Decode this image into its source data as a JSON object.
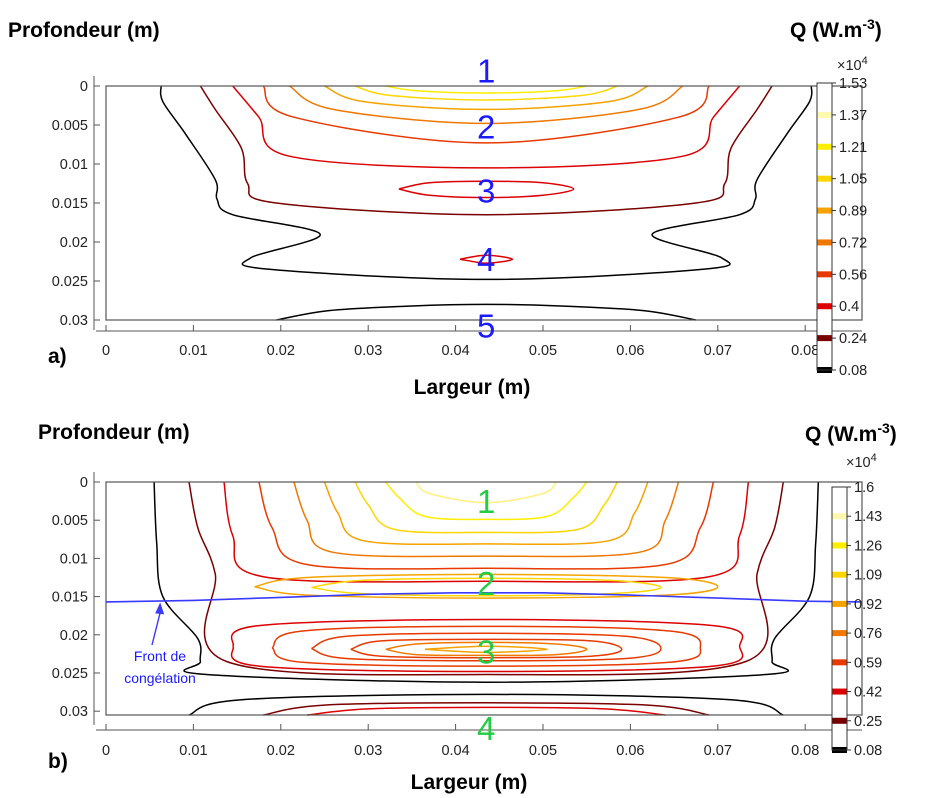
{
  "chart_data": [
    {
      "type": "contour",
      "panel_label": "a)",
      "title": "",
      "xlabel": "Largeur (m)",
      "ylabel": "Profondeur (m)",
      "xlim": [
        0,
        0.0865
      ],
      "ylim": [
        0.03,
        0
      ],
      "xticks": [
        "0",
        "0.01",
        "0.02",
        "0.03",
        "0.04",
        "0.05",
        "0.06",
        "0.07",
        "0.08"
      ],
      "yticks": [
        "0",
        "0.005",
        "0.01",
        "0.015",
        "0.02",
        "0.025",
        "0.03"
      ],
      "colorbar": {
        "title": "Q (W.m",
        "title_exp": "-3",
        "title_end": ")",
        "multiplier": "×10",
        "multiplier_exp": "4",
        "ticks": [
          "1.53",
          "1.37",
          "1.21",
          "1.05",
          "0.89",
          "0.72",
          "0.56",
          "0.4",
          "0.24",
          "0.08"
        ],
        "colors": [
          "#ffffff",
          "#fff9b0",
          "#ffee00",
          "#ffd700",
          "#f5a300",
          "#f07800",
          "#e83a00",
          "#dd0000",
          "#7a0000",
          "#000000"
        ]
      },
      "zones": [
        {
          "label": "1",
          "x": 0.0435,
          "y": -0.002,
          "color": "#1a1aff"
        },
        {
          "label": "2",
          "x": 0.0435,
          "y": 0.0052,
          "color": "#1a1aff"
        },
        {
          "label": "3",
          "x": 0.0435,
          "y": 0.0134,
          "color": "#1a1aff"
        },
        {
          "label": "4",
          "x": 0.0435,
          "y": 0.0222,
          "color": "#1a1aff"
        },
        {
          "label": "5",
          "x": 0.0435,
          "y": 0.0307,
          "color": "#1a1aff"
        }
      ],
      "contours": [
        {
          "level": 0.08,
          "color": "#000000",
          "x": [
            0.0063,
            0.0065,
            0.009,
            0.0125,
            0.0127,
            0.0145,
            0.0245,
            0.0166,
            0.0187,
            0.0435,
            0.0683,
            0.0704,
            0.0625,
            0.0725,
            0.0743,
            0.0745,
            0.078,
            0.0805,
            0.0807
          ],
          "y": [
            0,
            0.002,
            0.006,
            0.012,
            0.0145,
            0.0165,
            0.019,
            0.022,
            0.0235,
            0.0248,
            0.0235,
            0.022,
            0.019,
            0.0165,
            0.0145,
            0.012,
            0.006,
            0.002,
            0
          ]
        },
        {
          "level": 0.08,
          "color": "#000000",
          "x": [
            0.0195,
            0.0255,
            0.035,
            0.0435,
            0.052,
            0.0615,
            0.0675
          ],
          "y": [
            0.03,
            0.0288,
            0.0282,
            0.028,
            0.0282,
            0.0288,
            0.03
          ]
        },
        {
          "level": 0.24,
          "color": "#7a0000",
          "x": [
            0.0108,
            0.0125,
            0.0155,
            0.0162,
            0.0195,
            0.0435,
            0.0675,
            0.0708,
            0.0715,
            0.0745,
            0.0762
          ],
          "y": [
            0,
            0.003,
            0.008,
            0.0125,
            0.015,
            0.0165,
            0.015,
            0.0125,
            0.008,
            0.003,
            0
          ]
        },
        {
          "level": 0.4,
          "color": "#dd0000",
          "x": [
            0.0145,
            0.0175,
            0.021,
            0.0435,
            0.066,
            0.0695,
            0.0725
          ],
          "y": [
            0,
            0.004,
            0.009,
            0.0105,
            0.009,
            0.004,
            0
          ]
        },
        {
          "level": 0.56,
          "color": "#e83a00",
          "x": [
            0.018,
            0.0215,
            0.0435,
            0.0655,
            0.069
          ],
          "y": [
            0,
            0.004,
            0.0073,
            0.004,
            0
          ]
        },
        {
          "level": 0.72,
          "color": "#f07800",
          "x": [
            0.021,
            0.026,
            0.0435,
            0.061,
            0.066
          ],
          "y": [
            0,
            0.003,
            0.0048,
            0.003,
            0
          ]
        },
        {
          "level": 0.89,
          "color": "#f5a300",
          "x": [
            0.025,
            0.0295,
            0.0435,
            0.0575,
            0.062
          ],
          "y": [
            0,
            0.002,
            0.003,
            0.002,
            0
          ]
        },
        {
          "level": 1.05,
          "color": "#ffd700",
          "x": [
            0.0285,
            0.0325,
            0.0435,
            0.0545,
            0.0585
          ],
          "y": [
            0,
            0.0012,
            0.0018,
            0.0012,
            0
          ]
        },
        {
          "level": 1.21,
          "color": "#ffee00",
          "x": [
            0.032,
            0.0355,
            0.0435,
            0.0515,
            0.055
          ],
          "y": [
            0,
            0.0006,
            0.0009,
            0.0006,
            0
          ]
        },
        {
          "level": 0.4,
          "color": "#dd0000",
          "x": [
            0.0335,
            0.037,
            0.0435,
            0.05,
            0.0535,
            0.05,
            0.0435,
            0.037,
            0.0335
          ],
          "y": [
            0.0132,
            0.0124,
            0.0122,
            0.0124,
            0.0132,
            0.014,
            0.0143,
            0.014,
            0.0132
          ]
        },
        {
          "level": 0.4,
          "color": "#dd0000",
          "x": [
            0.0405,
            0.0435,
            0.0465,
            0.0435,
            0.0405
          ],
          "y": [
            0.0222,
            0.0217,
            0.0222,
            0.0227,
            0.0222
          ]
        }
      ]
    },
    {
      "type": "contour",
      "panel_label": "b)",
      "title": "",
      "xlabel": "Largeur (m)",
      "ylabel": "Profondeur (m)",
      "xlim": [
        0,
        0.0865
      ],
      "ylim": [
        0.0305,
        0
      ],
      "xticks": [
        "0",
        "0.01",
        "0.02",
        "0.03",
        "0.04",
        "0.05",
        "0.06",
        "0.07",
        "0.08"
      ],
      "yticks": [
        "0",
        "0.005",
        "0.01",
        "0.015",
        "0.02",
        "0.025",
        "0.03"
      ],
      "colorbar": {
        "title": "Q (W.m",
        "title_exp": "-3",
        "title_end": ")",
        "multiplier": "×10",
        "multiplier_exp": "4",
        "ticks": [
          "1.6",
          "1.43",
          "1.26",
          "1.09",
          "0.92",
          "0.76",
          "0.59",
          "0.42",
          "0.25",
          "0.08"
        ],
        "colors": [
          "#ffffff",
          "#fff9b0",
          "#ffee00",
          "#ffd700",
          "#f5a300",
          "#f07800",
          "#e83a00",
          "#dd0000",
          "#7a0000",
          "#000000"
        ]
      },
      "front": {
        "label_line1": "Front de",
        "label_line2": "congélation",
        "color": "#3a3aff",
        "x": [
          0,
          0.01,
          0.02,
          0.03,
          0.04,
          0.05,
          0.06,
          0.07,
          0.08,
          0.0865
        ],
        "y": [
          0.0157,
          0.0155,
          0.0151,
          0.0147,
          0.0145,
          0.0145,
          0.0148,
          0.0152,
          0.0156,
          0.0157
        ]
      },
      "zones": [
        {
          "label": "1",
          "x": 0.0435,
          "y": 0.0025,
          "color": "#22cc44"
        },
        {
          "label": "2",
          "x": 0.0435,
          "y": 0.0132,
          "color": "#22cc44"
        },
        {
          "label": "3",
          "x": 0.0435,
          "y": 0.0222,
          "color": "#22cc44"
        },
        {
          "label": "4",
          "x": 0.0435,
          "y": 0.0322,
          "color": "#22cc44"
        }
      ],
      "contours": [
        {
          "level": 0.08,
          "color": "#000000",
          "x": [
            0.0055,
            0.0058,
            0.0065,
            0.0105,
            0.0108,
            0.0115,
            0.0435,
            0.0755,
            0.0762,
            0.0765,
            0.0805,
            0.0812,
            0.0815
          ],
          "y": [
            0,
            0.008,
            0.015,
            0.0205,
            0.0235,
            0.0252,
            0.0262,
            0.0252,
            0.0235,
            0.0205,
            0.015,
            0.008,
            0
          ]
        },
        {
          "level": 0.08,
          "color": "#000000",
          "x": [
            0.0095,
            0.0155,
            0.0435,
            0.0715,
            0.0775
          ],
          "y": [
            0.0305,
            0.0285,
            0.0278,
            0.0285,
            0.0305
          ]
        },
        {
          "level": 0.25,
          "color": "#7a0000",
          "x": [
            0.0095,
            0.0105,
            0.0125,
            0.0138,
            0.0435,
            0.0732,
            0.0745,
            0.0765,
            0.0775
          ],
          "y": [
            0,
            0.006,
            0.012,
            0.0235,
            0.0252,
            0.0235,
            0.012,
            0.006,
            0
          ]
        },
        {
          "level": 0.25,
          "color": "#7a0000",
          "x": [
            0.018,
            0.025,
            0.0435,
            0.062,
            0.069
          ],
          "y": [
            0.0305,
            0.0292,
            0.0289,
            0.0292,
            0.0305
          ]
        },
        {
          "level": 0.42,
          "color": "#dd0000",
          "x": [
            0.0135,
            0.0145,
            0.018,
            0.0435,
            0.069,
            0.0725,
            0.0735
          ],
          "y": [
            0,
            0.007,
            0.0124,
            0.013,
            0.0124,
            0.007,
            0
          ]
        },
        {
          "level": 0.42,
          "color": "#dd0000",
          "x": [
            0.0145,
            0.0175,
            0.0435,
            0.0695,
            0.0725,
            0.0695,
            0.0435,
            0.0175,
            0.0145
          ],
          "y": [
            0.0215,
            0.0188,
            0.018,
            0.0188,
            0.0215,
            0.0241,
            0.0248,
            0.0241,
            0.0215
          ]
        },
        {
          "level": 0.42,
          "color": "#dd0000",
          "x": [
            0.023,
            0.03,
            0.0435,
            0.057,
            0.064
          ],
          "y": [
            0.0305,
            0.0297,
            0.0295,
            0.0297,
            0.0305
          ]
        },
        {
          "level": 0.59,
          "color": "#e83a00",
          "x": [
            0.0175,
            0.019,
            0.023,
            0.0435,
            0.064,
            0.068,
            0.0695
          ],
          "y": [
            0,
            0.006,
            0.0108,
            0.0113,
            0.0108,
            0.006,
            0
          ]
        },
        {
          "level": 0.59,
          "color": "#e83a00",
          "x": [
            0.019,
            0.0225,
            0.0435,
            0.0645,
            0.068,
            0.0645,
            0.0435,
            0.0225,
            0.019
          ],
          "y": [
            0.0217,
            0.0195,
            0.0189,
            0.0195,
            0.0217,
            0.0236,
            0.0241,
            0.0236,
            0.0217
          ]
        },
        {
          "level": 0.76,
          "color": "#f07800",
          "x": [
            0.0215,
            0.023,
            0.026,
            0.0435,
            0.061,
            0.064,
            0.0655
          ],
          "y": [
            0,
            0.005,
            0.0092,
            0.0097,
            0.0092,
            0.005,
            0
          ]
        },
        {
          "level": 0.76,
          "color": "#e83a00",
          "x": [
            0.0235,
            0.0275,
            0.0435,
            0.0595,
            0.0635,
            0.0595,
            0.0435,
            0.0275,
            0.0235
          ],
          "y": [
            0.0218,
            0.0202,
            0.0198,
            0.0202,
            0.0218,
            0.0231,
            0.0234,
            0.0231,
            0.0218
          ]
        },
        {
          "level": 0.92,
          "color": "#f5a300",
          "x": [
            0.025,
            0.0265,
            0.0295,
            0.0435,
            0.0575,
            0.0605,
            0.062
          ],
          "y": [
            0,
            0.004,
            0.0077,
            0.0081,
            0.0077,
            0.004,
            0
          ]
        },
        {
          "level": 0.92,
          "color": "#e83a00",
          "x": [
            0.028,
            0.0315,
            0.0435,
            0.0555,
            0.059,
            0.0555,
            0.0435,
            0.0315,
            0.028
          ],
          "y": [
            0.0219,
            0.0208,
            0.0206,
            0.0208,
            0.0219,
            0.0228,
            0.023,
            0.0228,
            0.0219
          ]
        },
        {
          "level": 1.09,
          "color": "#ffd700",
          "x": [
            0.0285,
            0.03,
            0.033,
            0.0435,
            0.054,
            0.057,
            0.0585
          ],
          "y": [
            0,
            0.003,
            0.0062,
            0.0066,
            0.0062,
            0.003,
            0
          ]
        },
        {
          "level": 1.09,
          "color": "#f07800",
          "x": [
            0.032,
            0.0355,
            0.0435,
            0.0515,
            0.055,
            0.0515,
            0.0435,
            0.0355,
            0.032
          ],
          "y": [
            0.0219,
            0.0212,
            0.021,
            0.0212,
            0.0219,
            0.0226,
            0.0227,
            0.0226,
            0.0219
          ]
        },
        {
          "level": 1.26,
          "color": "#ffee00",
          "x": [
            0.032,
            0.0335,
            0.0365,
            0.0435,
            0.0505,
            0.0535,
            0.055
          ],
          "y": [
            0,
            0.002,
            0.0045,
            0.0049,
            0.0045,
            0.002,
            0
          ]
        },
        {
          "level": 1.26,
          "color": "#f5a300",
          "x": [
            0.0365,
            0.0435,
            0.0505,
            0.0435,
            0.0365
          ],
          "y": [
            0.0219,
            0.0215,
            0.0219,
            0.0223,
            0.0219
          ]
        },
        {
          "level": 1.43,
          "color": "#fff080",
          "x": [
            0.0355,
            0.037,
            0.0435,
            0.05,
            0.0515
          ],
          "y": [
            0,
            0.0015,
            0.0027,
            0.0015,
            0
          ]
        },
        {
          "level": 0.92,
          "color": "#f5a300",
          "x": [
            0.017,
            0.023,
            0.0435,
            0.064,
            0.07,
            0.064,
            0.0435,
            0.023,
            0.017
          ],
          "y": [
            0.0137,
            0.0125,
            0.0121,
            0.0125,
            0.0137,
            0.0148,
            0.0152,
            0.0148,
            0.0137
          ]
        },
        {
          "level": 1.09,
          "color": "#ffd700",
          "x": [
            0.0235,
            0.029,
            0.0435,
            0.058,
            0.0635,
            0.058,
            0.0435,
            0.029,
            0.0235
          ],
          "y": [
            0.0138,
            0.0129,
            0.0126,
            0.0129,
            0.0138,
            0.0146,
            0.0149,
            0.0146,
            0.0138
          ]
        }
      ]
    }
  ]
}
